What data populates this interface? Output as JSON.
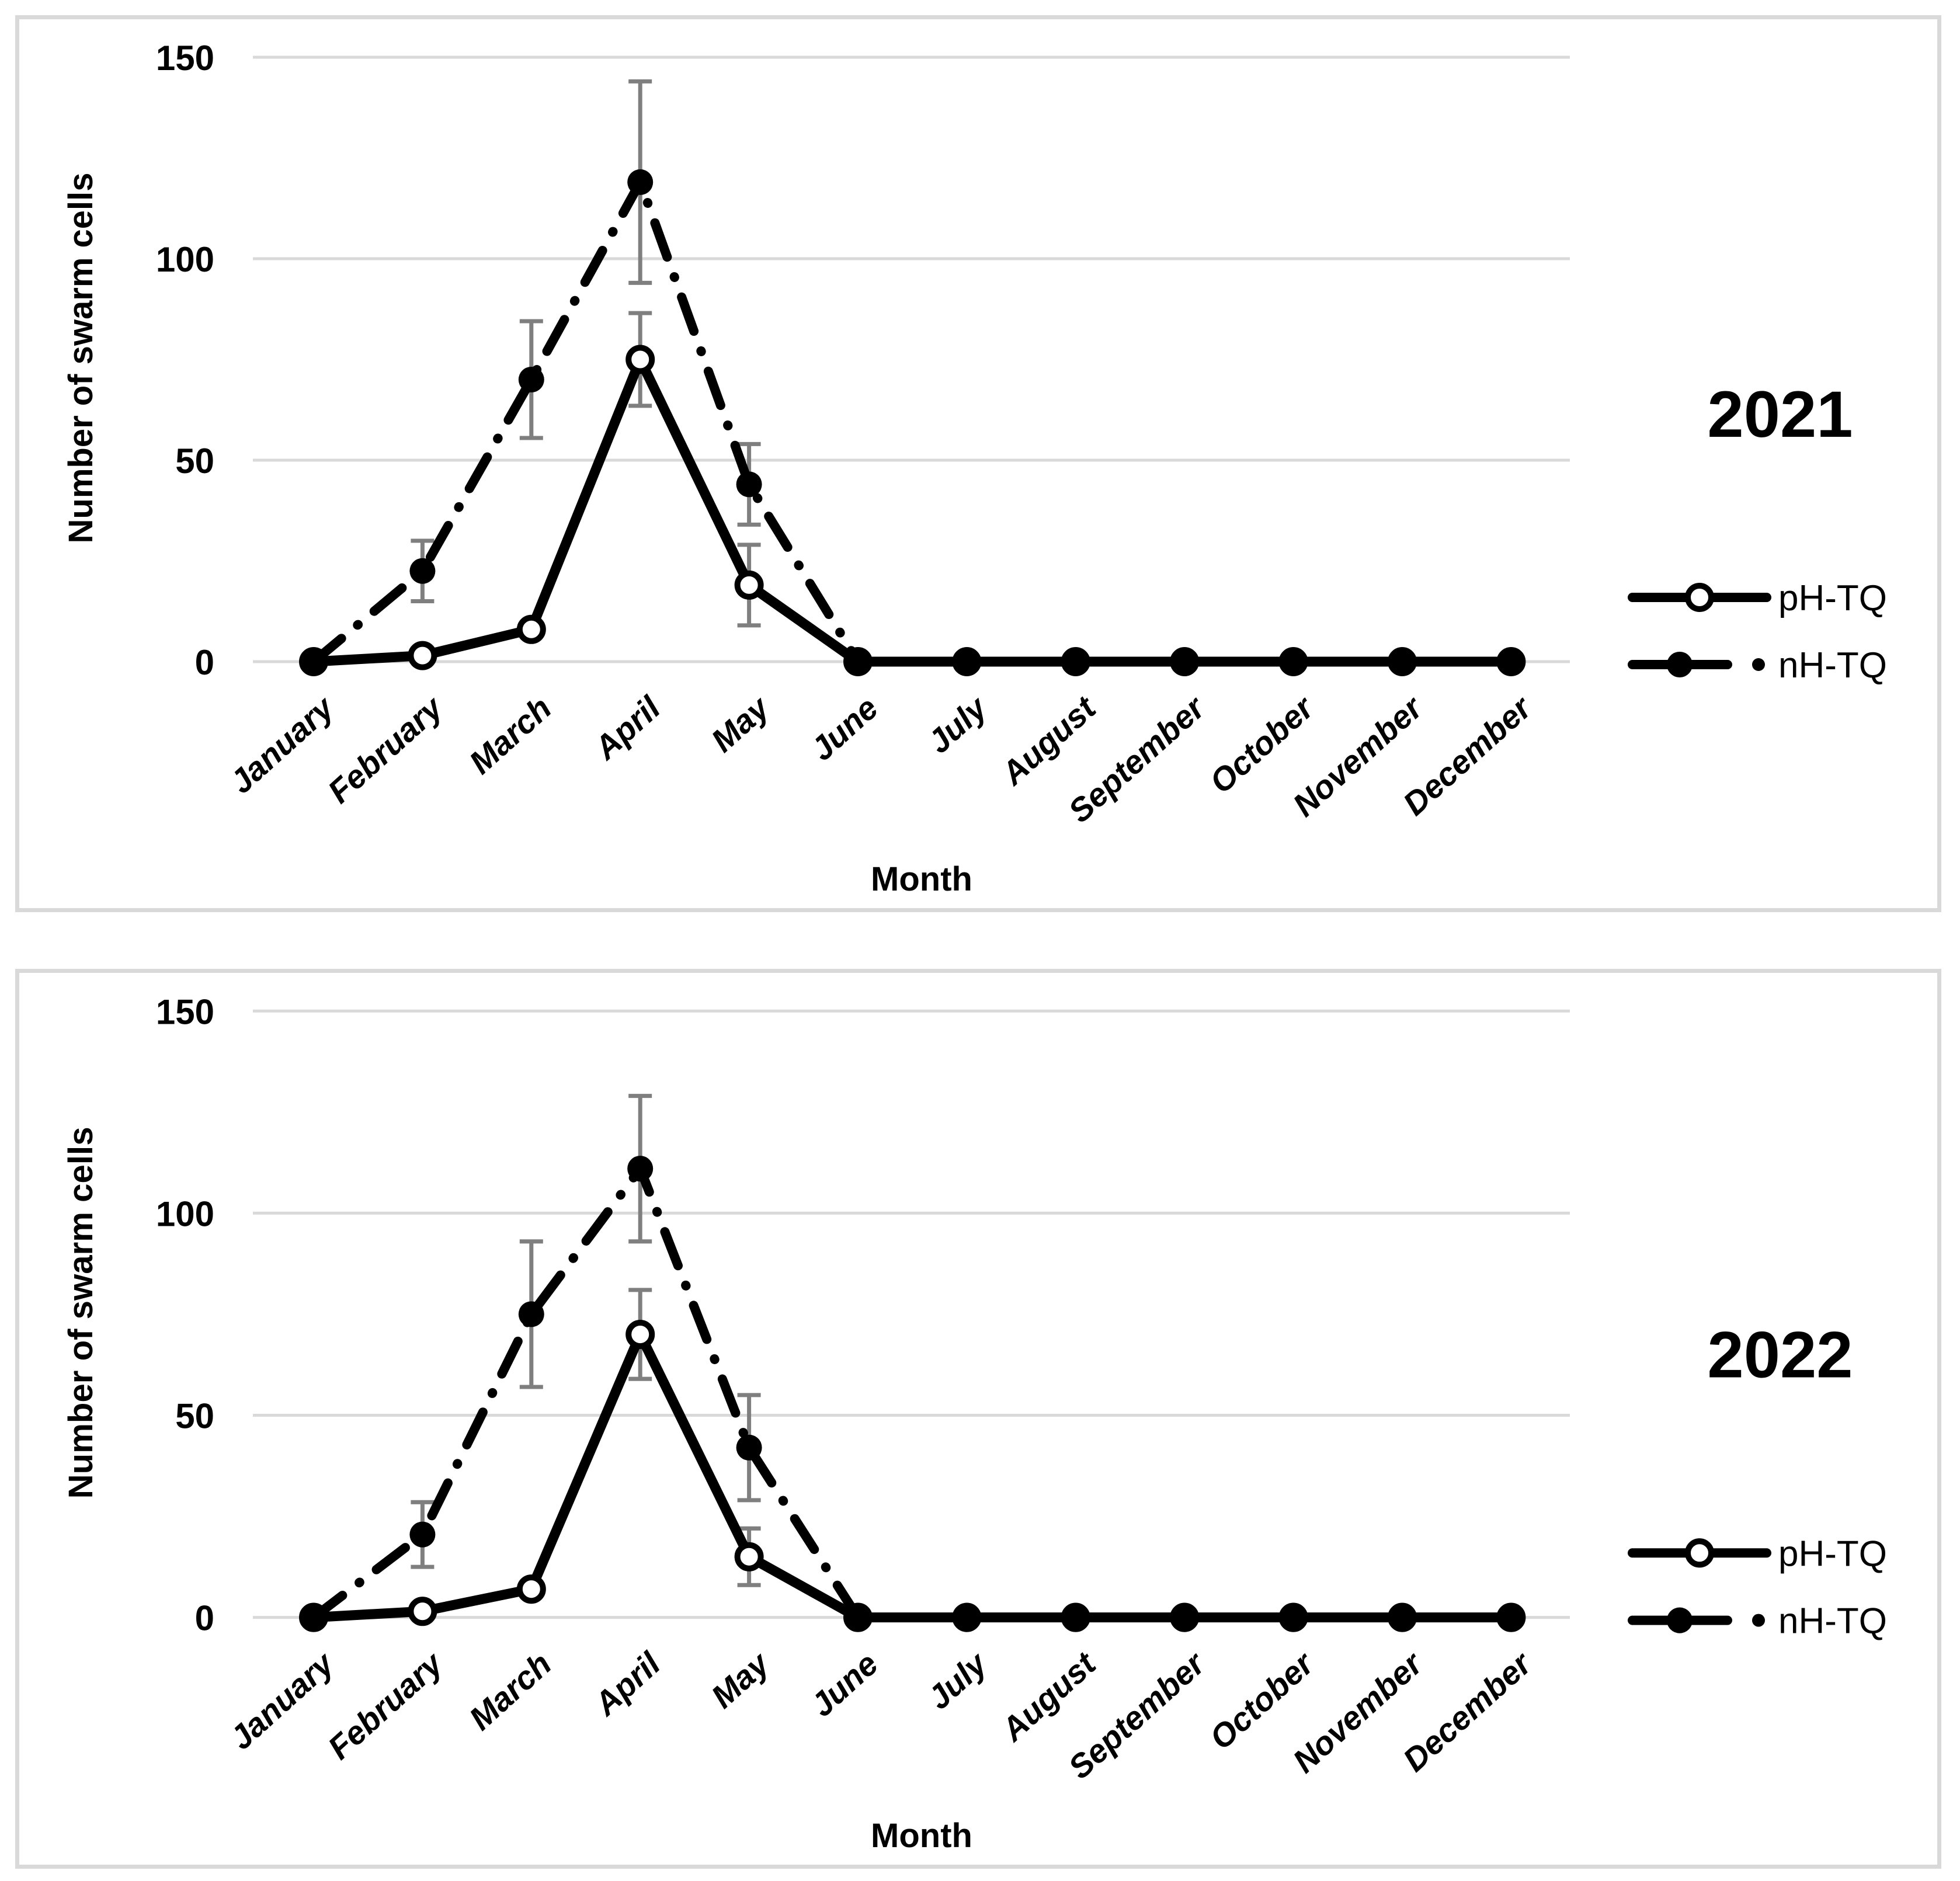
{
  "page": {
    "background": "#ffffff",
    "description": "Two stacked line charts of monthly swarm cell counts for 2021 and 2022"
  },
  "colors": {
    "series_line": "#000000",
    "gridline": "#d9d9d9",
    "error_bar": "#7f7f7f",
    "panel_border": "#d9d9d9",
    "text": "#000000",
    "open_marker_fill": "#ffffff"
  },
  "chart_data": [
    {
      "type": "line",
      "year": "2021",
      "title": "2021",
      "xlabel": "Month",
      "ylabel": "Number of swarm cells",
      "ylim": [
        0,
        150
      ],
      "yticks": [
        0,
        50,
        100,
        150
      ],
      "grid": "horizontal",
      "legend_position": "right",
      "categories": [
        "January",
        "February",
        "March",
        "April",
        "May",
        "June",
        "July",
        "August",
        "September",
        "October",
        "November",
        "December"
      ],
      "series": [
        {
          "name": "pH-TQ",
          "marker": "open-circle",
          "line_style": "solid",
          "values": [
            0,
            1.5,
            8,
            75,
            19,
            0,
            0,
            0,
            0,
            0,
            0,
            0
          ],
          "error": [
            0,
            0,
            0,
            11.5,
            10,
            0,
            0,
            0,
            0,
            0,
            0,
            0
          ]
        },
        {
          "name": "nH-TQ",
          "marker": "filled-circle",
          "line_style": "dash-dot",
          "values": [
            0,
            22.5,
            70,
            119,
            44,
            0,
            0,
            0,
            0,
            0,
            0,
            0
          ],
          "error": [
            0,
            7.5,
            14.5,
            25,
            10,
            0,
            0,
            0,
            0,
            0,
            0,
            0
          ]
        }
      ]
    },
    {
      "type": "line",
      "year": "2022",
      "title": "2022",
      "xlabel": "Month",
      "ylabel": "Number of swarm cells",
      "ylim": [
        0,
        150
      ],
      "yticks": [
        0,
        50,
        100,
        150
      ],
      "grid": "horizontal",
      "legend_position": "right",
      "categories": [
        "January",
        "February",
        "March",
        "April",
        "May",
        "June",
        "July",
        "August",
        "September",
        "October",
        "November",
        "December"
      ],
      "series": [
        {
          "name": "pH-TQ",
          "marker": "open-circle",
          "line_style": "solid",
          "values": [
            0,
            1.5,
            7,
            70,
            15,
            0,
            0,
            0,
            0,
            0,
            0,
            0
          ],
          "error": [
            0,
            0,
            0,
            11,
            7,
            0,
            0,
            0,
            0,
            0,
            0,
            0
          ]
        },
        {
          "name": "nH-TQ",
          "marker": "filled-circle",
          "line_style": "dash-dot",
          "values": [
            0,
            20.5,
            75,
            111,
            42,
            0,
            0,
            0,
            0,
            0,
            0,
            0
          ],
          "error": [
            0,
            8,
            18,
            18,
            13,
            0,
            0,
            0,
            0,
            0,
            0,
            0
          ]
        }
      ]
    }
  ]
}
